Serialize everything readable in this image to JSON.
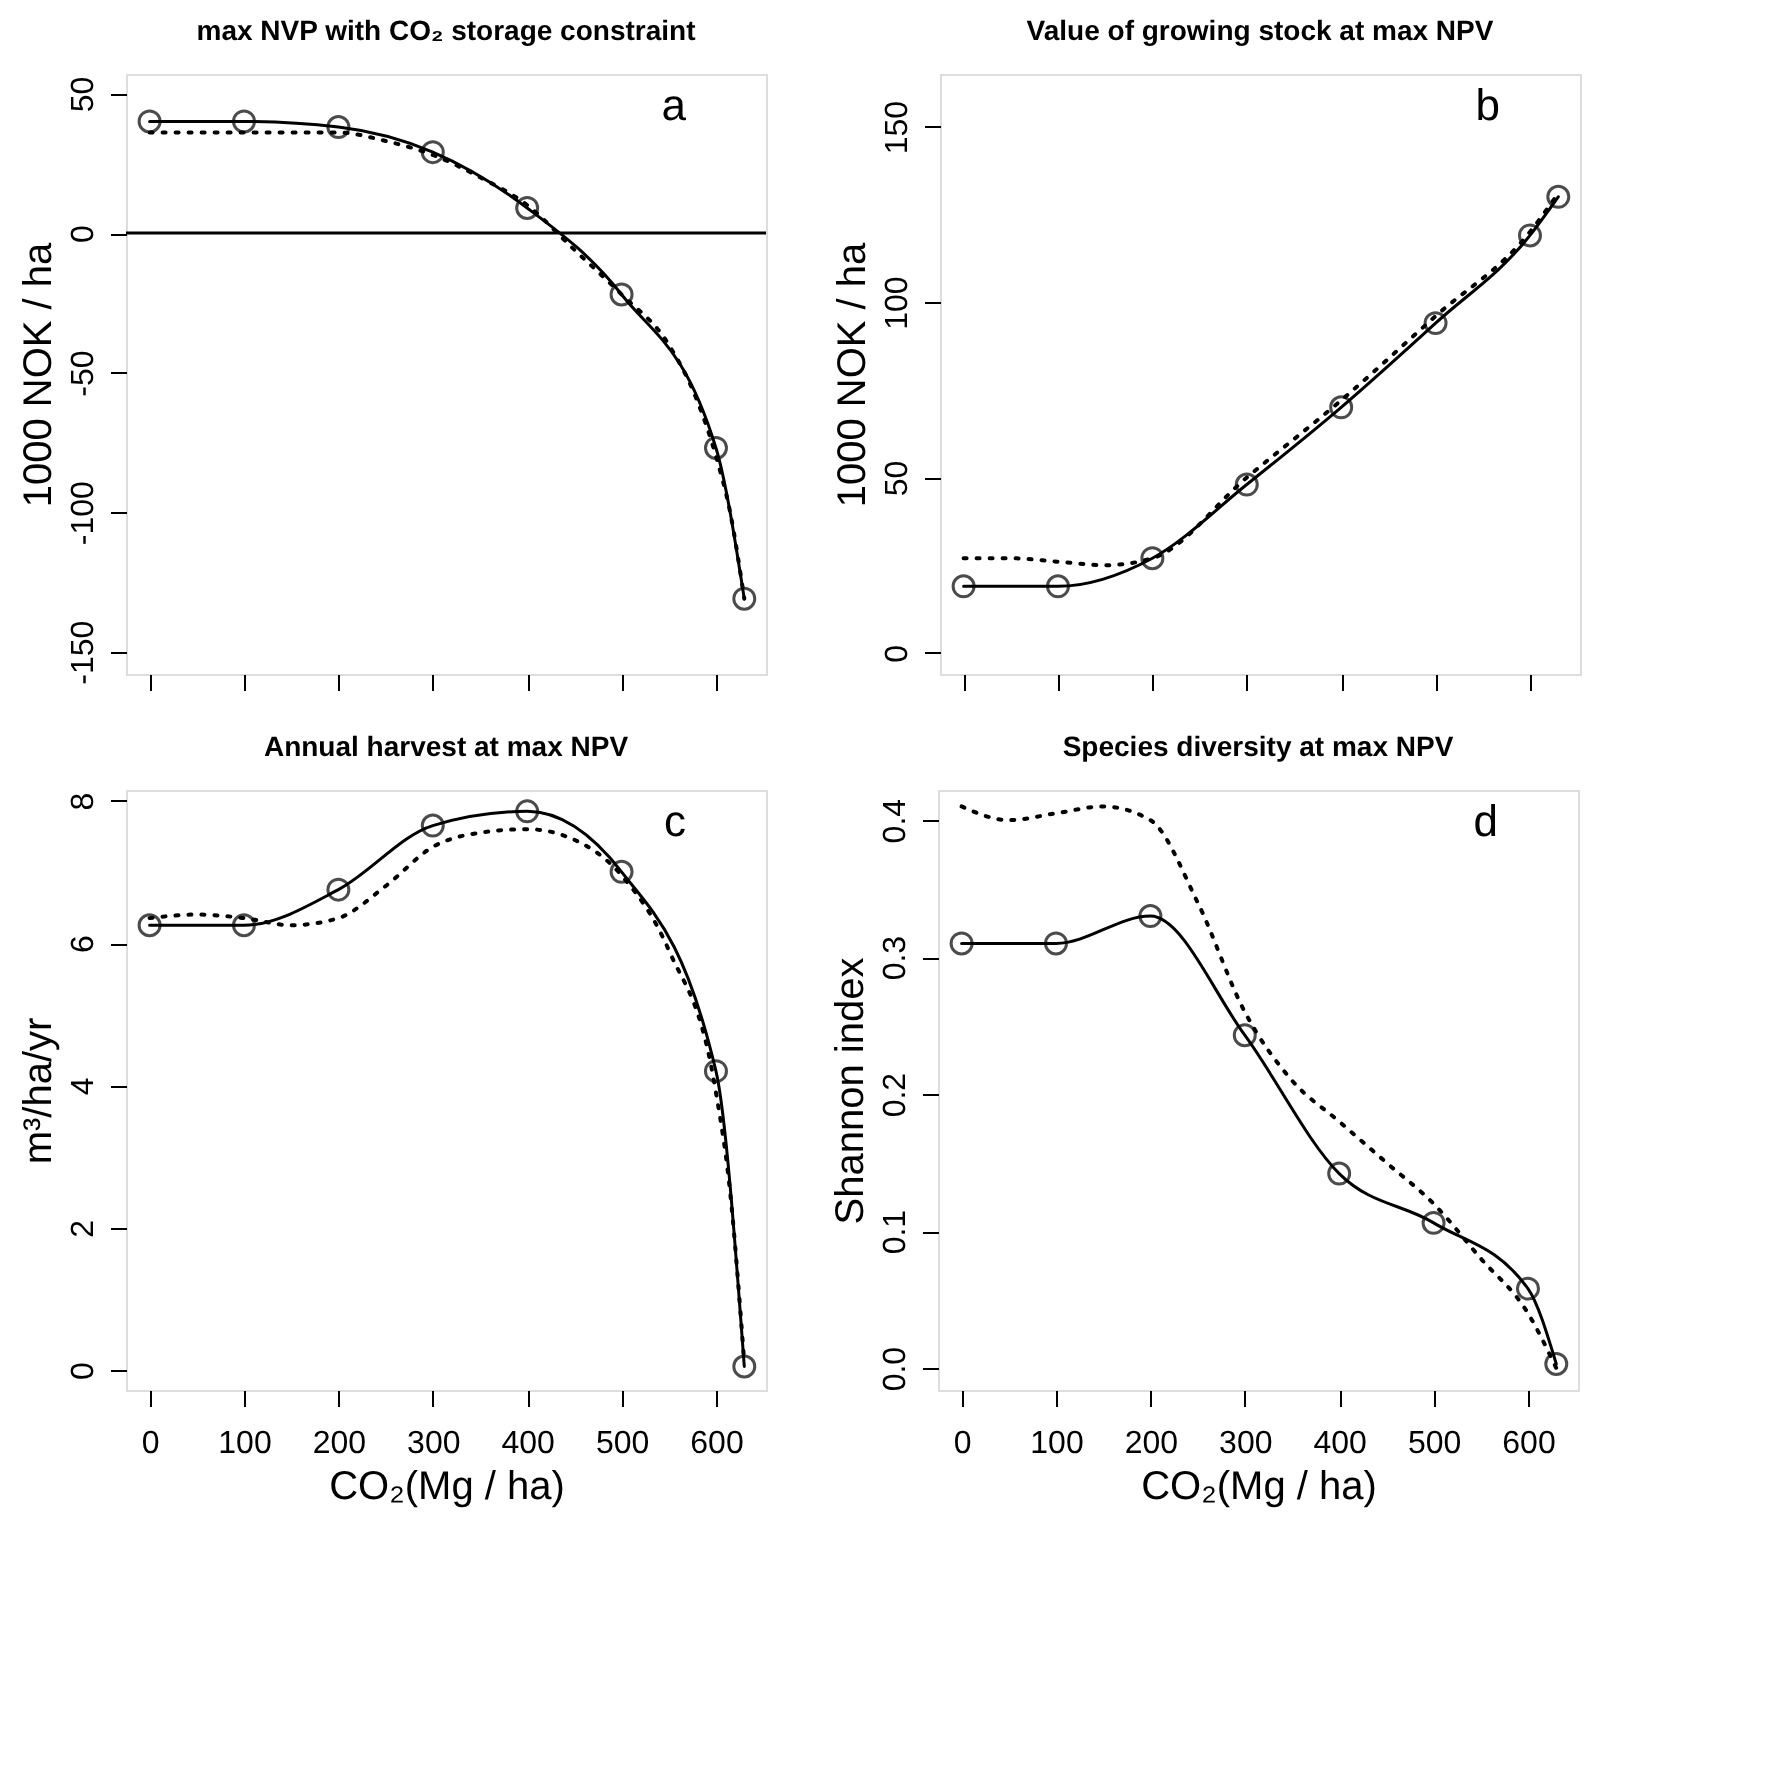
{
  "chart_data": [
    {
      "type": "line",
      "title": "max NVP with CO₂ storage constraint",
      "ylabel": "1000 NOK / ha",
      "annotations": [
        "a"
      ],
      "xlim": [
        -25,
        653
      ],
      "xticks": [
        0,
        100,
        200,
        300,
        400,
        500,
        600
      ],
      "ylim": [
        -158,
        57
      ],
      "yticks": [
        -150,
        -100,
        -50,
        0,
        50
      ],
      "grid": false,
      "tick_labels": "y",
      "ref_lines": [
        {
          "axis": "y",
          "value": 0,
          "label": null
        }
      ],
      "series": [
        {
          "color": "#000000",
          "marker": "circle",
          "line_style": "solid",
          "x": [
            0,
            100,
            200,
            300,
            400,
            500,
            600,
            630
          ],
          "values": [
            40,
            40,
            38,
            29,
            9,
            -22,
            -77,
            -131
          ]
        },
        {
          "color": "#000000",
          "marker": "none",
          "line_style": "dotted",
          "x": [
            0,
            50,
            100,
            150,
            200,
            250,
            300,
            350,
            400,
            450,
            500,
            550,
            580,
            600,
            615,
            630
          ],
          "values": [
            36,
            36,
            36,
            36,
            36,
            33,
            28,
            20,
            10,
            -6,
            -22,
            -40,
            -60,
            -80,
            -100,
            -131
          ]
        }
      ]
    },
    {
      "type": "line",
      "title": "Value of growing stock at max NPV",
      "ylabel": "1000 NOK / ha",
      "annotations": [
        "b"
      ],
      "xlim": [
        -25,
        653
      ],
      "xticks": [
        0,
        100,
        200,
        300,
        400,
        500,
        600
      ],
      "ylim": [
        -6,
        165
      ],
      "yticks": [
        0,
        50,
        100,
        150
      ],
      "grid": false,
      "tick_labels": "y",
      "series": [
        {
          "color": "#000000",
          "marker": "circle",
          "line_style": "solid",
          "x": [
            0,
            100,
            200,
            300,
            400,
            500,
            600,
            630
          ],
          "values": [
            19,
            19,
            27,
            48,
            70,
            94,
            119,
            130
          ]
        },
        {
          "color": "#000000",
          "marker": "none",
          "line_style": "dotted",
          "x": [
            0,
            50,
            100,
            150,
            200,
            300,
            400,
            500,
            600,
            630
          ],
          "values": [
            27,
            27,
            26,
            25,
            27,
            50,
            72,
            96,
            120,
            131
          ]
        }
      ]
    },
    {
      "type": "line",
      "title": "Annual harvest at max NPV",
      "xlabel": "CO₂(Mg / ha)",
      "ylabel": "m³/ha/yr",
      "annotations": [
        "c"
      ],
      "xlim": [
        -25,
        653
      ],
      "xticks": [
        0,
        100,
        200,
        300,
        400,
        500,
        600
      ],
      "ylim": [
        -0.28,
        8.15
      ],
      "yticks": [
        0,
        2,
        4,
        6,
        8
      ],
      "grid": false,
      "series": [
        {
          "color": "#000000",
          "marker": "circle",
          "line_style": "solid",
          "x": [
            0,
            100,
            200,
            300,
            400,
            500,
            600,
            630
          ],
          "values": [
            6.25,
            6.25,
            6.75,
            7.65,
            7.85,
            7.0,
            4.2,
            0.05
          ]
        },
        {
          "color": "#000000",
          "marker": "none",
          "line_style": "dotted",
          "x": [
            0,
            50,
            100,
            150,
            200,
            250,
            300,
            350,
            400,
            450,
            500,
            550,
            600,
            615,
            630
          ],
          "values": [
            6.35,
            6.4,
            6.35,
            6.25,
            6.35,
            6.8,
            7.35,
            7.55,
            7.6,
            7.45,
            6.95,
            5.9,
            3.9,
            2.5,
            0.1
          ]
        }
      ]
    },
    {
      "type": "line",
      "title": "Species diversity at max NPV",
      "xlabel": "CO₂(Mg / ha)",
      "ylabel": "Shannon index",
      "annotations": [
        "d"
      ],
      "xlim": [
        -25,
        653
      ],
      "xticks": [
        0,
        100,
        200,
        300,
        400,
        500,
        600
      ],
      "ylim": [
        -0.016,
        0.422
      ],
      "yticks": [
        {
          "value": 0,
          "label": "0.0"
        },
        0.1,
        0.2,
        0.3,
        0.4
      ],
      "grid": false,
      "series": [
        {
          "color": "#000000",
          "marker": "circle",
          "line_style": "solid",
          "x": [
            0,
            100,
            200,
            300,
            400,
            500,
            600,
            630
          ],
          "values": [
            0.31,
            0.31,
            0.33,
            0.243,
            0.142,
            0.106,
            0.058,
            0.003
          ]
        },
        {
          "color": "#000000",
          "marker": "none",
          "line_style": "dotted",
          "x": [
            0,
            50,
            100,
            150,
            200,
            250,
            300,
            350,
            400,
            450,
            500,
            550,
            600,
            630
          ],
          "values": [
            0.41,
            0.4,
            0.405,
            0.41,
            0.4,
            0.34,
            0.26,
            0.21,
            0.18,
            0.15,
            0.12,
            0.08,
            0.04,
            0.0
          ]
        }
      ]
    }
  ]
}
